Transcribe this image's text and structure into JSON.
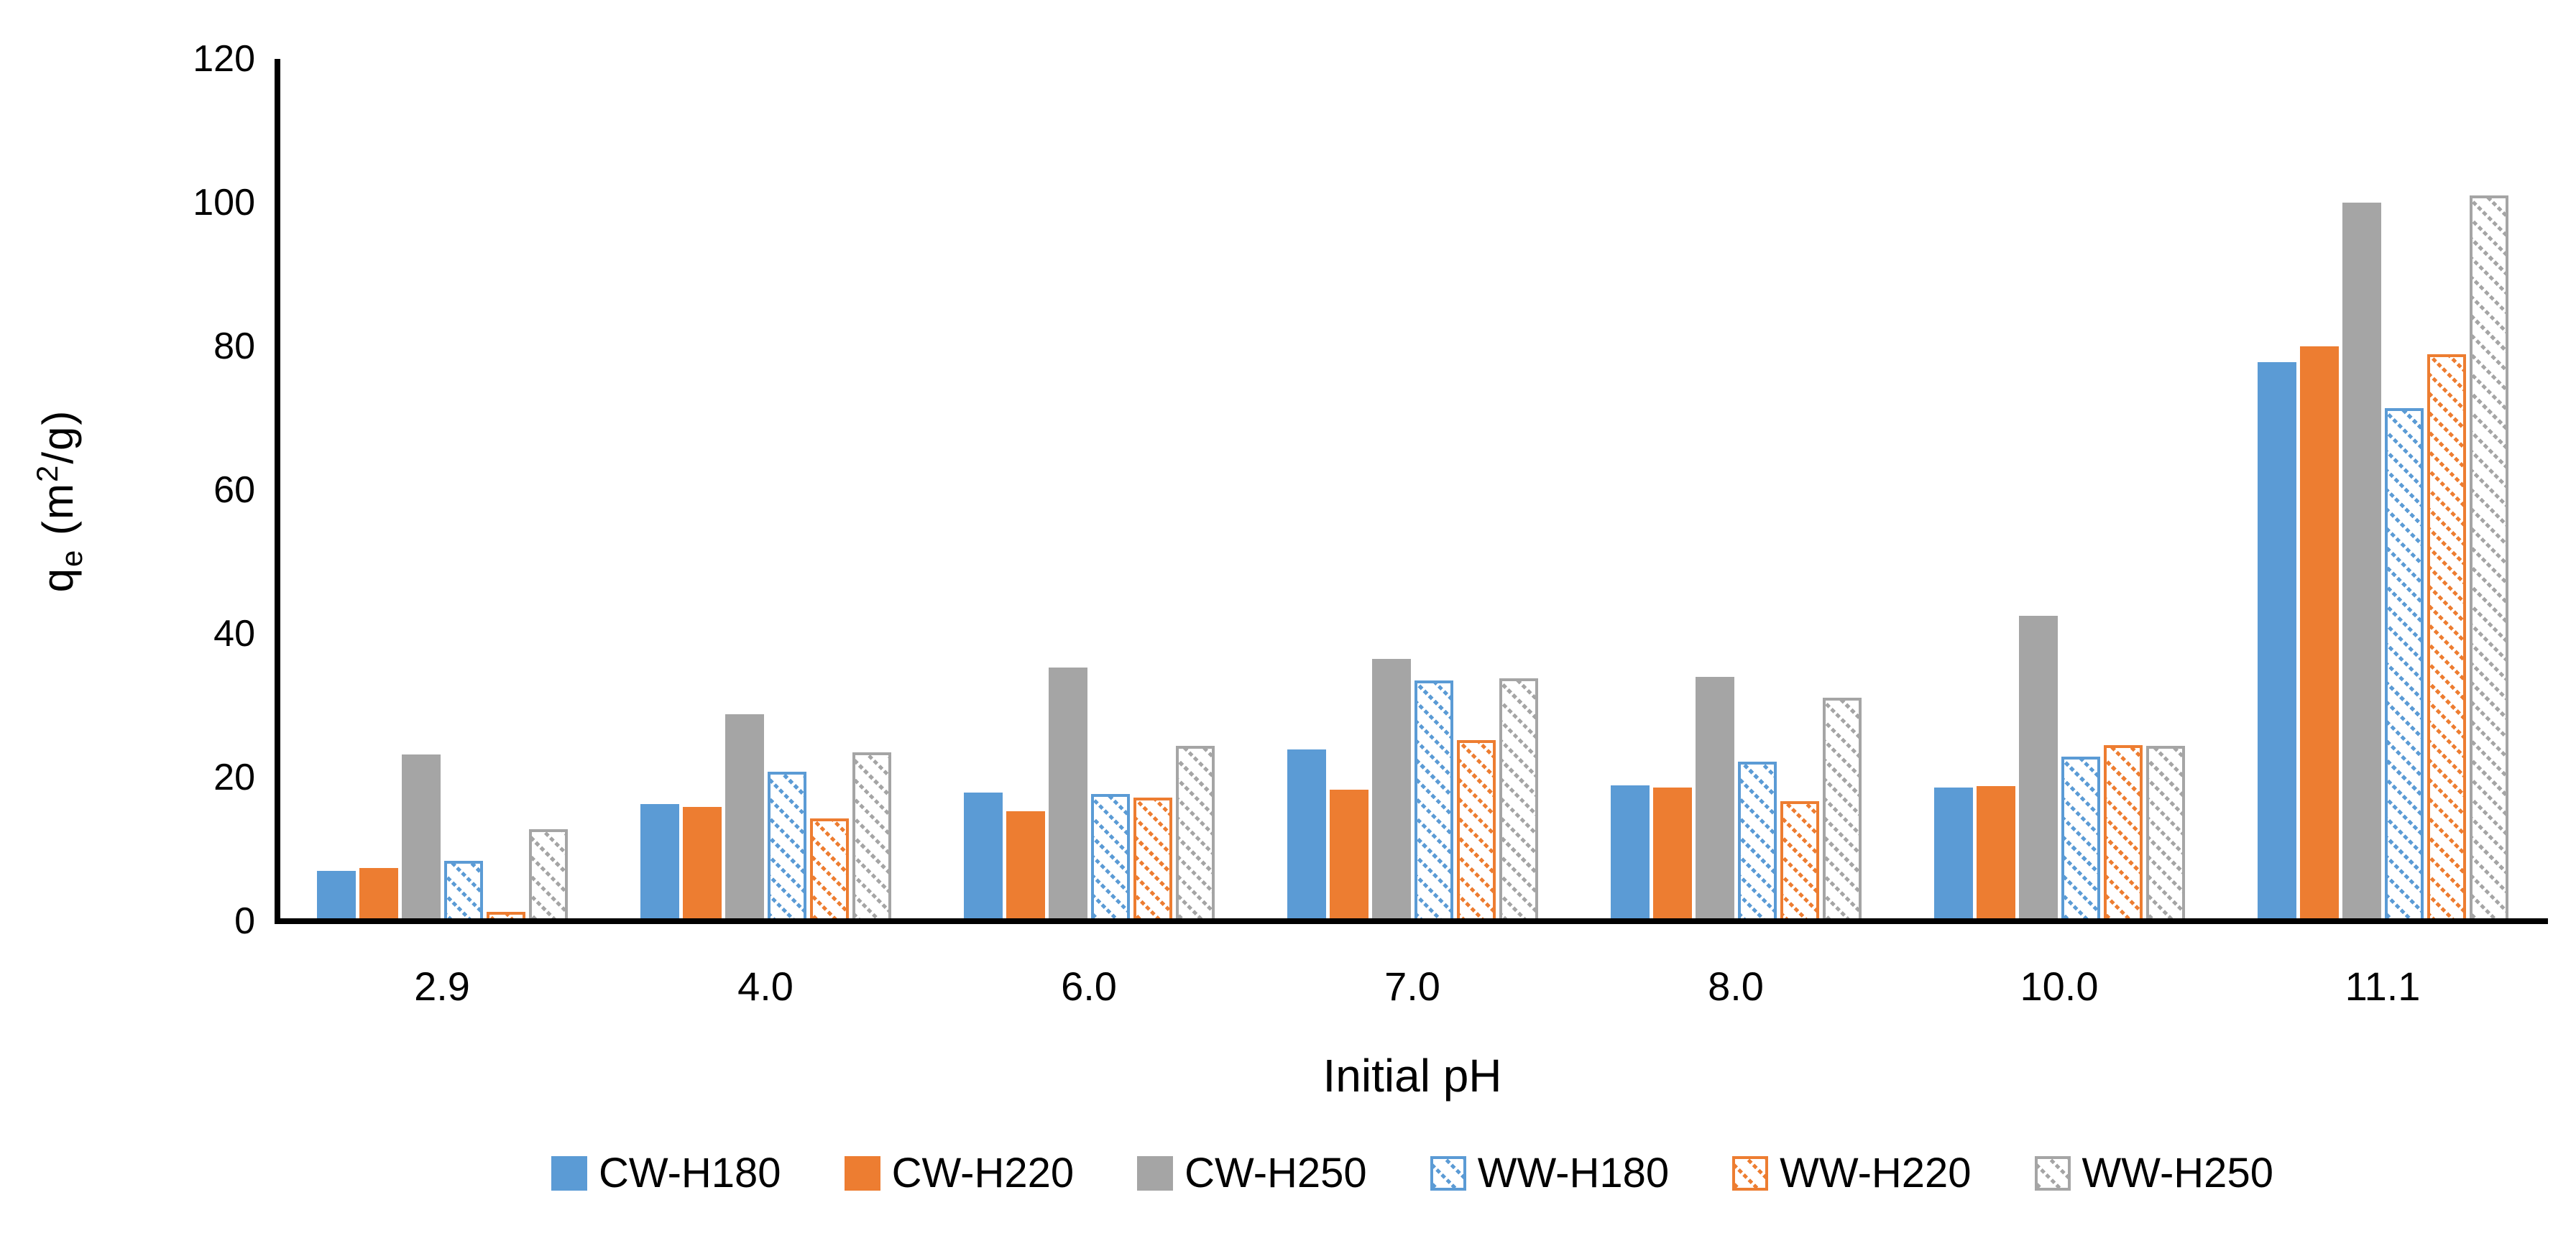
{
  "chart_data": {
    "type": "bar",
    "title": "",
    "xlabel": "Initial pH",
    "ylabel_parts": {
      "base": "q",
      "sub": "e",
      "mid": " (m",
      "sup": "2",
      "end": "/g)"
    },
    "categories": [
      "2.9",
      "4.0",
      "6.0",
      "7.0",
      "8.0",
      "10.0",
      "11.1"
    ],
    "series": [
      {
        "name": "CW-H180",
        "style": "solid",
        "color": "#5B9BD5",
        "values": [
          7.0,
          16.3,
          17.9,
          23.9,
          18.9,
          18.6,
          77.8
        ]
      },
      {
        "name": "CW-H220",
        "style": "solid",
        "color": "#ED7D31",
        "values": [
          7.4,
          15.9,
          15.3,
          18.3,
          18.6,
          18.8,
          80.0
        ]
      },
      {
        "name": "CW-H250",
        "style": "solid",
        "color": "#A5A5A5",
        "values": [
          23.2,
          28.8,
          35.3,
          36.5,
          34.0,
          42.5,
          100.0
        ]
      },
      {
        "name": "WW-H180",
        "style": "hatched",
        "color": "#5B9BD5",
        "values": [
          8.4,
          20.8,
          17.7,
          33.5,
          22.2,
          22.9,
          71.4
        ]
      },
      {
        "name": "WW-H220",
        "style": "hatched",
        "color": "#ED7D31",
        "values": [
          1.3,
          14.3,
          17.2,
          25.2,
          16.7,
          24.5,
          78.9
        ]
      },
      {
        "name": "WW-H250",
        "style": "hatched",
        "color": "#A5A5A5",
        "values": [
          12.8,
          23.5,
          24.4,
          33.8,
          31.1,
          24.4,
          101.0
        ]
      }
    ],
    "y_ticks": [
      0,
      20,
      40,
      60,
      80,
      100,
      120
    ],
    "ylim": [
      0,
      120
    ],
    "grid": false,
    "legend_position": "bottom",
    "axis_color": "#000000",
    "text_color": "#000000"
  }
}
